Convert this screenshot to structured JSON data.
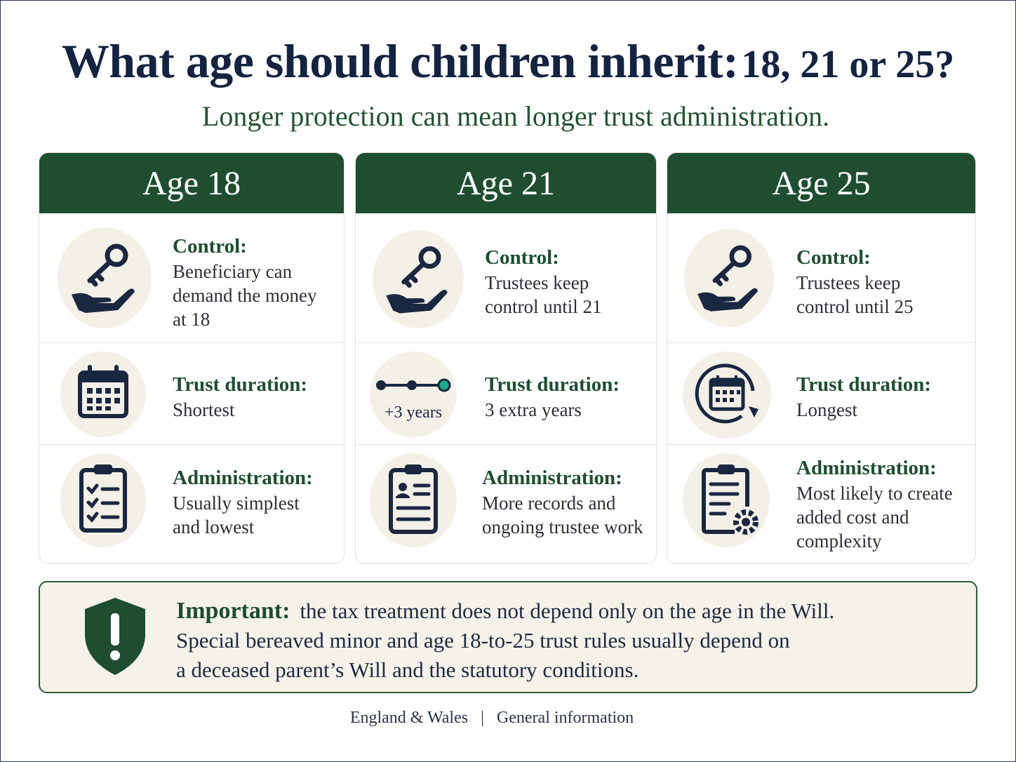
{
  "title": {
    "main": "What age should children inherit:",
    "ages": "18, 21 or 25?"
  },
  "subtitle": "Longer protection can mean longer trust administration.",
  "columns": [
    {
      "heading": "Age 18",
      "control": {
        "label": "Control:",
        "lines": [
          "Beneficiary can",
          "demand the money",
          "at 18"
        ]
      },
      "duration": {
        "label": "Trust duration:",
        "lines": [
          "Shortest"
        ]
      },
      "admin": {
        "label": "Administration:",
        "lines": [
          "Usually simplest",
          "and lowest"
        ]
      }
    },
    {
      "heading": "Age 21",
      "control": {
        "label": "Control:",
        "lines": [
          "Trustees keep",
          "control until 21"
        ]
      },
      "duration": {
        "label": "Trust duration:",
        "lines": [
          "3 extra years"
        ],
        "badge": "+3 years"
      },
      "admin": {
        "label": "Administration:",
        "lines": [
          "More records and",
          "ongoing trustee work"
        ]
      }
    },
    {
      "heading": "Age 25",
      "control": {
        "label": "Control:",
        "lines": [
          "Trustees keep",
          "control until 25"
        ]
      },
      "duration": {
        "label": "Trust duration:",
        "lines": [
          "Longest"
        ]
      },
      "admin": {
        "label": "Administration:",
        "lines": [
          "Most likely to create",
          "added cost and",
          "complexity"
        ]
      }
    }
  ],
  "important": {
    "label": "Important:",
    "lines": [
      "the tax treatment does not depend only on the age in the Will.",
      "Special bereaved minor and age 18-to-25 trust rules usually depend on",
      "a deceased parent’s Will and the statutory conditions."
    ]
  },
  "footer": {
    "left": "England & Wales",
    "separator": "|",
    "right": "General information"
  },
  "colors": {
    "green": "#1e4d30",
    "navy": "#132340",
    "circle": "#f3f0e7",
    "accent": "#1ea88a"
  },
  "icons": [
    "key-hand-icon",
    "calendar-icon",
    "timeline-icon",
    "calendar-cycle-icon",
    "checklist-icon",
    "clipboard-person-icon",
    "clipboard-gear-icon",
    "shield-alert-icon"
  ]
}
